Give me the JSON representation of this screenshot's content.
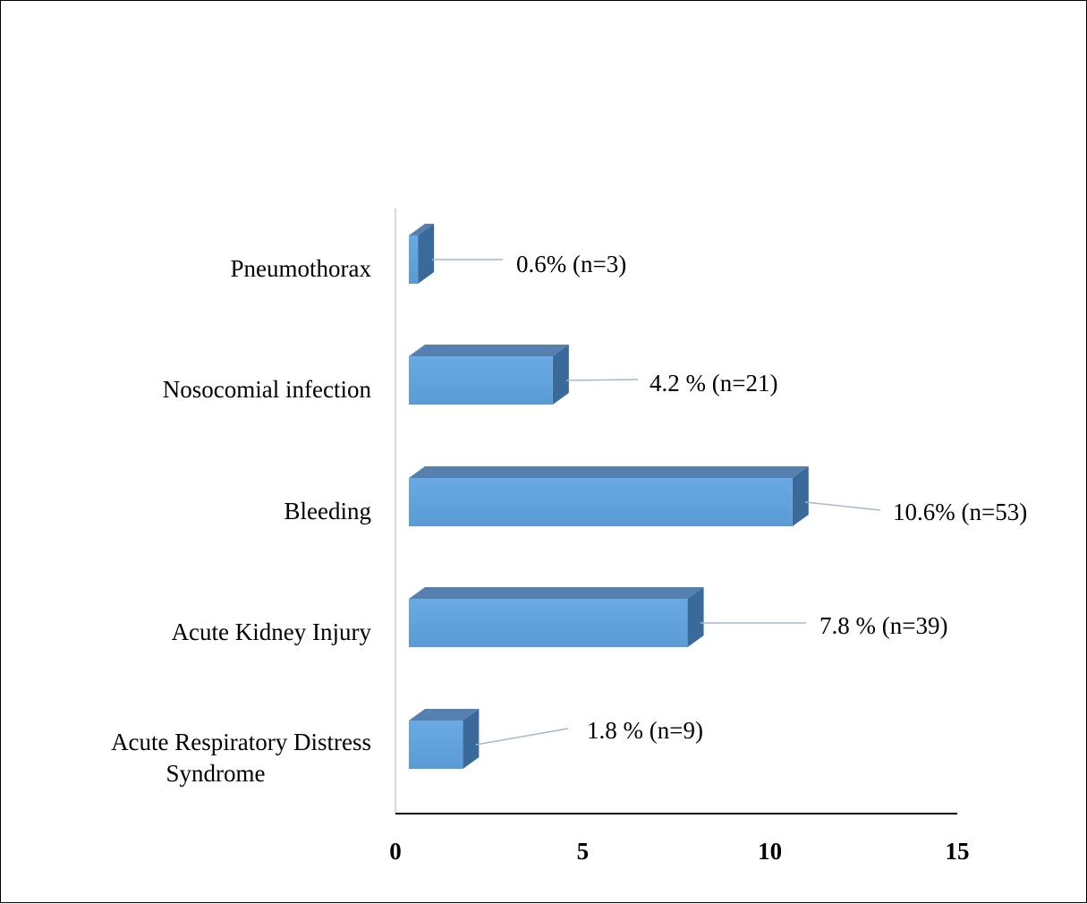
{
  "chart_data": {
    "type": "bar",
    "orientation": "horizontal",
    "style": "3d",
    "categories": [
      "Acute  Respiratory Distress Syndrome",
      "Acute Kidney Injury",
      "Bleeding",
      "Nosocomial infection",
      "Pneumothorax"
    ],
    "category_lines": [
      [
        "Acute  Respiratory Distress",
        "Syndrome"
      ],
      [
        "Acute Kidney Injury"
      ],
      [
        "Bleeding"
      ],
      [
        "Nosocomial infection"
      ],
      [
        "Pneumothorax"
      ]
    ],
    "values": [
      1.8,
      7.8,
      10.6,
      4.2,
      0.6
    ],
    "data_labels": [
      "1.8 % (n=9)",
      "7.8 % (n=39)",
      "10.6% (n=53)",
      "4.2 % (n=21)",
      "0.6% (n=3)"
    ],
    "xlim": [
      0,
      15
    ],
    "xticks": [
      "0",
      "5",
      "10",
      "15"
    ],
    "title": "",
    "xlabel": "",
    "ylabel": "",
    "grid": false,
    "colors": {
      "bar_front": "#5b9bd5",
      "bar_front_light": "#6aaae4",
      "bar_top": "#5580b0",
      "bar_side": "#3a6a99",
      "leader_line": "#a6b9cc",
      "axis": "#000000",
      "value_axis_line": "#d9d9d9"
    }
  }
}
